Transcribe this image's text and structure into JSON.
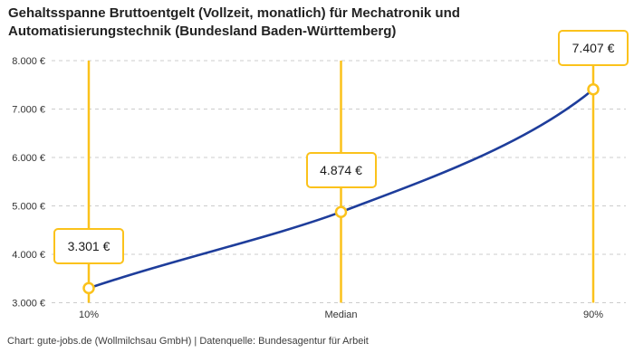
{
  "title_line1": "Gehaltsspanne Bruttoentgelt (Vollzeit, monatlich) für Mechatronik und",
  "title_line2": "Automatisierungstechnik (Bundesland Baden-Württemberg)",
  "footer": "Chart: gute-jobs.de (Wollmilchsau GmbH) | Datenquelle: Bundesagentur für Arbeit",
  "chart_data": {
    "type": "line",
    "title": "Gehaltsspanne Bruttoentgelt (Vollzeit, monatlich) für Mechatronik und Automatisierungstechnik (Bundesland Baden-Württemberg)",
    "x": [
      "10%",
      "Median",
      "90%"
    ],
    "values": [
      3301,
      4874,
      7407
    ],
    "value_labels": [
      "3.301 €",
      "4.874 €",
      "7.407 €"
    ],
    "ylim": [
      3000,
      8000
    ],
    "y_ticks": [
      3000,
      4000,
      5000,
      6000,
      7000,
      8000
    ],
    "y_tick_labels": [
      "3.000 €",
      "4.000 €",
      "5.000 €",
      "6.000 €",
      "7.000 €",
      "8.000 €"
    ],
    "grid": "horizontal-dashed",
    "legend": "none",
    "colors": {
      "line": "#1e3d9b",
      "accent": "#fbc21b",
      "grid": "#cccccc",
      "marker_fill": "#ffffff",
      "text": "#333333"
    }
  }
}
